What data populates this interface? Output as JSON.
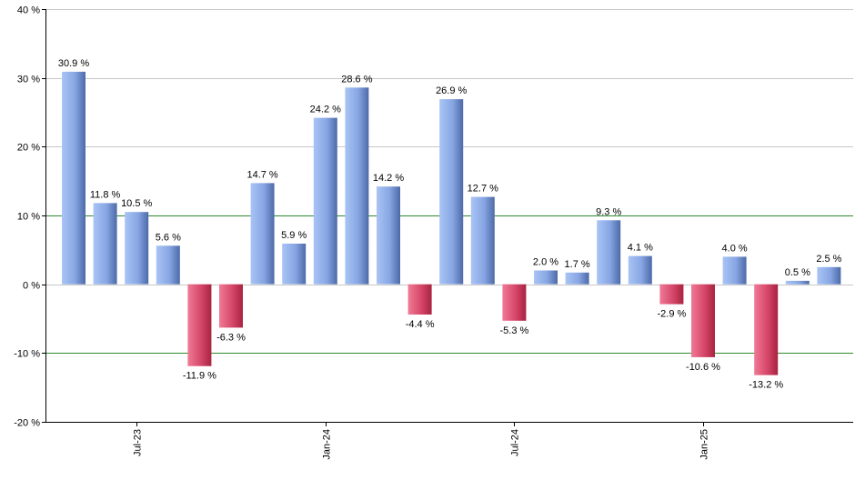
{
  "chart_data": {
    "type": "bar",
    "title": "",
    "xlabel": "",
    "ylabel": "",
    "ylim": [
      -20,
      40
    ],
    "y_ticks": [
      40,
      30,
      20,
      10,
      0,
      -10,
      -20
    ],
    "y_tick_labels": [
      "40 %",
      "30 %",
      "20 %",
      "10 %",
      "0 %",
      "-10 %",
      "-20 %"
    ],
    "reference_lines": [
      10,
      -10
    ],
    "values": [
      30.9,
      11.8,
      10.5,
      5.6,
      -11.9,
      -6.3,
      14.7,
      5.9,
      24.2,
      28.6,
      14.2,
      -4.4,
      26.9,
      12.7,
      -5.3,
      2.0,
      1.7,
      9.3,
      4.1,
      -2.9,
      -10.6,
      4.0,
      -13.2,
      0.5,
      2.5
    ],
    "value_labels": [
      "30.9 %",
      "11.8 %",
      "10.5 %",
      "5.6 %",
      "-11.9 %",
      "-6.3 %",
      "14.7 %",
      "5.9 %",
      "24.2 %",
      "28.6 %",
      "14.2 %",
      "-4.4 %",
      "26.9 %",
      "12.7 %",
      "-5.3 %",
      "2.0 %",
      "1.7 %",
      "9.3 %",
      "4.1 %",
      "-2.9 %",
      "-10.6 %",
      "4.0 %",
      "-13.2 %",
      "0.5 %",
      "2.5 %"
    ],
    "x_tick_labels": [
      {
        "label": "Jul-23",
        "bar_index": 2
      },
      {
        "label": "Jan-24",
        "bar_index": 8
      },
      {
        "label": "Jul-24",
        "bar_index": 14
      },
      {
        "label": "Jan-25",
        "bar_index": 20
      }
    ],
    "colors": {
      "positive_light": "#a9c4f5",
      "positive_dark": "#4d6aa8",
      "negative_light": "#f07a95",
      "negative_dark": "#a8233f",
      "reference_line": "#2e8b2e",
      "grid": "#c8c8c8",
      "axis": "#000000"
    }
  }
}
